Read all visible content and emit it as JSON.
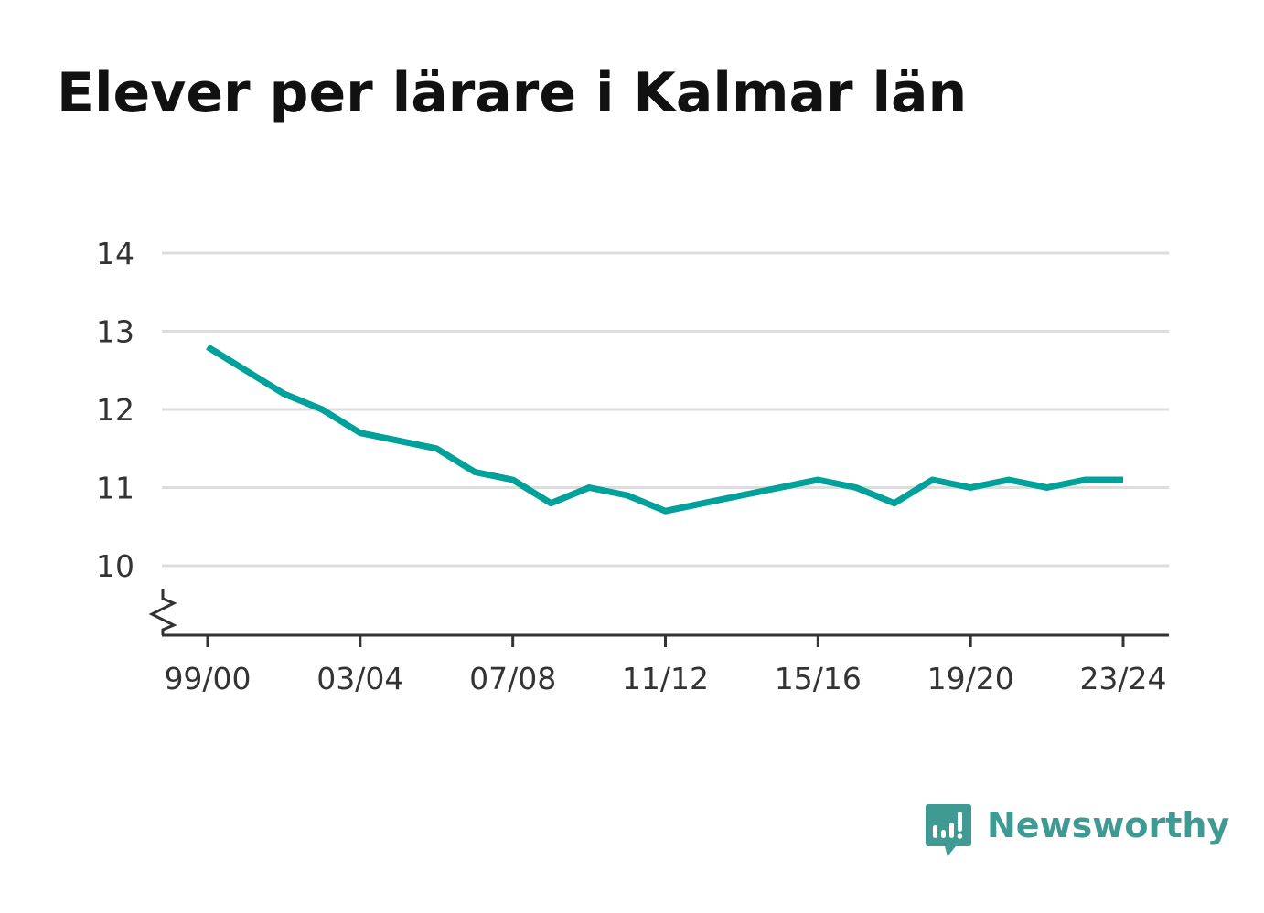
{
  "colors": {
    "line": "#00a19a",
    "grid": "#dddddd",
    "axis": "#333333",
    "title": "#111111",
    "brand": "#3f9a94"
  },
  "brand": {
    "name": "Newsworthy",
    "icon": "newsworthy-chat-chart-icon"
  },
  "chart_data": {
    "type": "line",
    "title": "Elever per lärare i Kalmar län",
    "xlabel": "",
    "ylabel": "",
    "ylim": [
      9.1,
      14
    ],
    "yticks": [
      10,
      11,
      12,
      13,
      14
    ],
    "y_axis_break": true,
    "grid": true,
    "x": [
      "99/00",
      "00/01",
      "01/02",
      "02/03",
      "03/04",
      "04/05",
      "05/06",
      "06/07",
      "07/08",
      "08/09",
      "09/10",
      "10/11",
      "11/12",
      "12/13",
      "13/14",
      "14/15",
      "15/16",
      "16/17",
      "17/18",
      "18/19",
      "19/20",
      "20/21",
      "21/22",
      "22/23",
      "23/24"
    ],
    "xticks": [
      "99/00",
      "03/04",
      "07/08",
      "11/12",
      "15/16",
      "19/20",
      "23/24"
    ],
    "series": [
      {
        "values": [
          12.8,
          12.5,
          12.2,
          12.0,
          11.7,
          11.6,
          11.5,
          11.2,
          11.1,
          10.8,
          11.0,
          10.9,
          10.7,
          10.8,
          10.9,
          11.0,
          11.1,
          11.0,
          10.8,
          11.1,
          11.0,
          11.1,
          11.0,
          11.1,
          11.1
        ]
      }
    ]
  }
}
